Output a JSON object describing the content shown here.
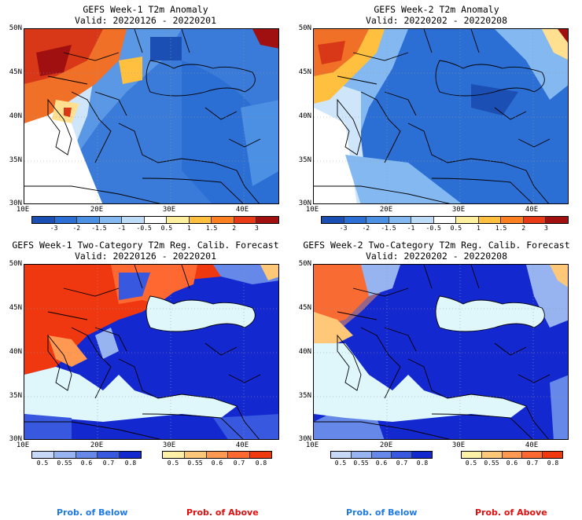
{
  "panels": [
    {
      "title_line1": "GEFS Week-1 T2m Anomaly",
      "title_line2": "Valid: 20220126 - 20220201"
    },
    {
      "title_line1": "GEFS Week-2 T2m Anomaly",
      "title_line2": "Valid: 20220202 - 20220208"
    },
    {
      "title_line1": "GEFS Week-1 Two-Category T2m Reg. Calib. Forecast",
      "title_line2": "Valid: 20220126 - 20220201"
    },
    {
      "title_line1": "GEFS Week-2 Two-Category T2m Reg. Calib. Forecast",
      "title_line2": "Valid: 20220202 - 20220208"
    }
  ],
  "lat_labels": [
    "50N",
    "45N",
    "40N",
    "35N",
    "30N"
  ],
  "lon_labels": [
    "10E",
    "20E",
    "30E",
    "40E"
  ],
  "anomaly_colorbar": {
    "labels": [
      "-3",
      "-2",
      "-1.5",
      "-1",
      "-0.5",
      "0.5",
      "1",
      "1.5",
      "2",
      "3"
    ],
    "colors": [
      "#1c4fb4",
      "#2c6fd4",
      "#4c90e4",
      "#84b8f0",
      "#bcdcf8",
      "#ffffff",
      "#fff0a0",
      "#ffc040",
      "#ff8020",
      "#e83a14",
      "#a01010"
    ]
  },
  "prob_below": {
    "labels": [
      "0.5",
      "0.55",
      "0.6",
      "0.7",
      "0.8"
    ],
    "colors": [
      "#c8d8f8",
      "#98b4f0",
      "#6688e8",
      "#3858e0",
      "#1428d0"
    ],
    "caption": "Prob. of Below"
  },
  "prob_above": {
    "labels": [
      "0.5",
      "0.55",
      "0.6",
      "0.7",
      "0.8"
    ],
    "colors": [
      "#fff0a8",
      "#ffc878",
      "#ff9850",
      "#ff6830",
      "#f03810"
    ],
    "caption": "Prob. of Above"
  },
  "colors": {
    "sea_light": "#dff6fb",
    "land_outline": "#000000",
    "caption_blue": "#1f7ae0",
    "caption_red": "#e01010"
  }
}
